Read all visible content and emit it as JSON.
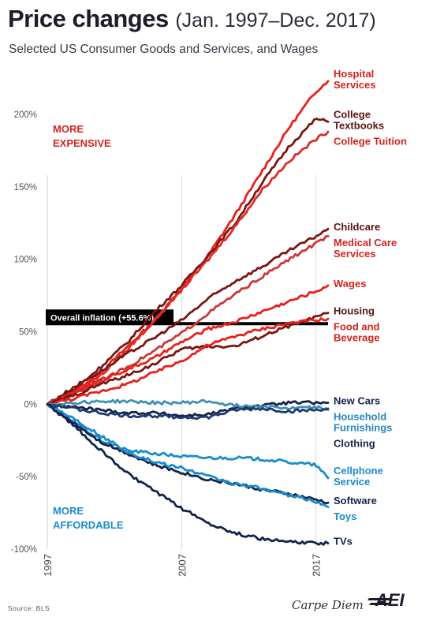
{
  "header": {
    "title": "Price changes",
    "title_range": "(Jan. 1997–Dec. 2017)",
    "subtitle": "Selected US Consumer Goods and Services, and Wages"
  },
  "footer": {
    "source": "Source: BLS",
    "brand": "Carpe Diem",
    "logo_text": "AEI"
  },
  "chart_data": {
    "type": "line",
    "x_ticks": [
      "1997",
      "2007",
      "2017"
    ],
    "xlim": [
      1997,
      2017.9
    ],
    "ylim": [
      -100,
      230
    ],
    "y_ticks": [
      200,
      150,
      100,
      50,
      0,
      -50,
      -100
    ],
    "y_tick_labels": [
      "200%",
      "150%",
      "100%",
      "50%",
      "0%",
      "-50%",
      "-100%"
    ],
    "grid": "vertical lines at 1997, 2007, 2017",
    "annotations": {
      "more_expensive": [
        "MORE",
        "EXPENSIVE"
      ],
      "more_affordable": [
        "MORE",
        "AFFORDABLE"
      ],
      "inflation_label": "Overall inflation (+55.6%)",
      "inflation_value": 55.6
    },
    "colors": {
      "red": "#e8201b",
      "dark_red": "#8a1a14",
      "mid_red": "#c8393c",
      "navy": "#14234b",
      "blue": "#1a8ccc",
      "steel_blue": "#3d8fb8"
    },
    "series": [
      {
        "label": [
          "Hospital",
          "Services"
        ],
        "color": "#e8201b",
        "label_color": "#d42420",
        "x": [
          1997,
          1999,
          2001,
          2003,
          2005,
          2007,
          2009,
          2011,
          2013,
          2015,
          2017,
          2017.9
        ],
        "y": [
          0,
          9,
          22,
          40,
          58,
          80,
          103,
          131,
          161,
          191,
          216,
          223
        ]
      },
      {
        "label": [
          "College",
          "Textbooks"
        ],
        "color": "#7a1612",
        "label_color": "#5a1410",
        "x": [
          1997,
          1999,
          2001,
          2003,
          2005,
          2007,
          2009,
          2011,
          2013,
          2015,
          2017,
          2017.9
        ],
        "y": [
          0,
          10,
          26,
          43,
          64,
          82,
          103,
          125,
          153,
          178,
          197,
          195
        ]
      },
      {
        "label": [
          "College Tuition"
        ],
        "color": "#e02a26",
        "label_color": "#d42420",
        "x": [
          1997,
          1999,
          2001,
          2003,
          2005,
          2007,
          2009,
          2011,
          2013,
          2015,
          2017,
          2017.9
        ],
        "y": [
          0,
          8,
          20,
          38,
          58,
          79,
          100,
          123,
          148,
          168,
          183,
          188
        ]
      },
      {
        "label": [
          "Childcare"
        ],
        "color": "#7a1612",
        "label_color": "#5a1410",
        "x": [
          1997,
          1999,
          2001,
          2003,
          2005,
          2007,
          2009,
          2011,
          2013,
          2015,
          2017,
          2017.9
        ],
        "y": [
          0,
          12,
          23,
          35,
          46,
          58,
          73,
          85,
          95,
          106,
          116,
          121
        ]
      },
      {
        "label": [
          "Medical Care",
          "Services"
        ],
        "color": "#c8393c",
        "label_color": "#d42420",
        "x": [
          1997,
          1999,
          2001,
          2003,
          2005,
          2007,
          2009,
          2011,
          2013,
          2015,
          2017,
          2017.9
        ],
        "y": [
          0,
          7,
          16,
          26,
          37,
          49,
          63,
          76,
          88,
          100,
          111,
          116
        ]
      },
      {
        "label": [
          "Wages"
        ],
        "color": "#e8201b",
        "label_color": "#d42420",
        "x": [
          1997,
          1999,
          2001,
          2003,
          2005,
          2007,
          2009,
          2011,
          2013,
          2015,
          2017,
          2017.9
        ],
        "y": [
          0,
          8,
          17,
          24,
          32,
          43,
          52,
          57,
          64,
          71,
          78,
          82
        ]
      },
      {
        "label": [
          "Housing"
        ],
        "color": "#7a1612",
        "label_color": "#5a1410",
        "x": [
          1997,
          1999,
          2001,
          2003,
          2005,
          2007,
          2009,
          2011,
          2013,
          2015,
          2017,
          2017.9
        ],
        "y": [
          0,
          6,
          14,
          20,
          28,
          38,
          40,
          40,
          47,
          54,
          60,
          63
        ]
      },
      {
        "label": [
          "Food and",
          "Beverage"
        ],
        "color": "#e8201b",
        "label_color": "#d42420",
        "x": [
          1997,
          1999,
          2001,
          2003,
          2005,
          2007,
          2009,
          2011,
          2013,
          2015,
          2017,
          2017.9
        ],
        "y": [
          0,
          4,
          9,
          14,
          22,
          30,
          41,
          47,
          52,
          56,
          58,
          59
        ]
      },
      {
        "label": [
          "New Cars"
        ],
        "color": "#14234b",
        "label_color": "#14234b",
        "x": [
          1997,
          1999,
          2001,
          2003,
          2005,
          2007,
          2009,
          2011,
          2013,
          2015,
          2017,
          2017.9
        ],
        "y": [
          0,
          -2,
          -4,
          -6,
          -6,
          -8,
          -7,
          -3,
          -1,
          1,
          1,
          1
        ]
      },
      {
        "label": [
          "Household",
          "Furnishings"
        ],
        "color": "#3d8fb8",
        "label_color": "#2a86c0",
        "x": [
          1997,
          1999,
          2001,
          2003,
          2005,
          2007,
          2009,
          2011,
          2013,
          2015,
          2017,
          2017.9
        ],
        "y": [
          0,
          1,
          2,
          2,
          1,
          1,
          2,
          -1,
          -1,
          -3,
          -2,
          -4
        ]
      },
      {
        "label": [
          "Clothing"
        ],
        "color": "#1e3a6e",
        "label_color": "#14234b",
        "x": [
          1997,
          1999,
          2001,
          2003,
          2005,
          2007,
          2009,
          2011,
          2013,
          2015,
          2017,
          2017.9
        ],
        "y": [
          0,
          -3,
          -6,
          -8,
          -8,
          -9,
          -9,
          -4,
          -3,
          -5,
          -4,
          -3
        ]
      },
      {
        "label": [
          "Cellphone",
          "Service"
        ],
        "color": "#1a8ccc",
        "label_color": "#1a8ccc",
        "x": [
          1997,
          1999,
          2001,
          2003,
          2005,
          2007,
          2009,
          2011,
          2013,
          2015,
          2017,
          2017.9
        ],
        "y": [
          0,
          -12,
          -25,
          -32,
          -34,
          -36,
          -37,
          -37,
          -38,
          -40,
          -42,
          -51
        ]
      },
      {
        "label": [
          "Software"
        ],
        "color": "#14234b",
        "label_color": "#14234b",
        "x": [
          1997,
          1999,
          2001,
          2003,
          2005,
          2007,
          2009,
          2011,
          2013,
          2015,
          2017,
          2017.9
        ],
        "y": [
          0,
          -13,
          -26,
          -34,
          -42,
          -47,
          -52,
          -55,
          -59,
          -62,
          -66,
          -68
        ]
      },
      {
        "label": [
          "Toys"
        ],
        "color": "#1a8ccc",
        "label_color": "#1a8ccc",
        "x": [
          1997,
          1999,
          2001,
          2003,
          2005,
          2007,
          2009,
          2011,
          2013,
          2015,
          2017,
          2017.9
        ],
        "y": [
          0,
          -10,
          -22,
          -33,
          -40,
          -44,
          -50,
          -55,
          -58,
          -63,
          -67,
          -71
        ]
      },
      {
        "label": [
          "TVs"
        ],
        "color": "#14234b",
        "label_color": "#14234b",
        "x": [
          1997,
          1999,
          2001,
          2003,
          2005,
          2007,
          2009,
          2011,
          2013,
          2015,
          2017,
          2017.9
        ],
        "y": [
          0,
          -15,
          -32,
          -48,
          -60,
          -72,
          -82,
          -89,
          -93,
          -95,
          -96,
          -96
        ]
      }
    ]
  }
}
